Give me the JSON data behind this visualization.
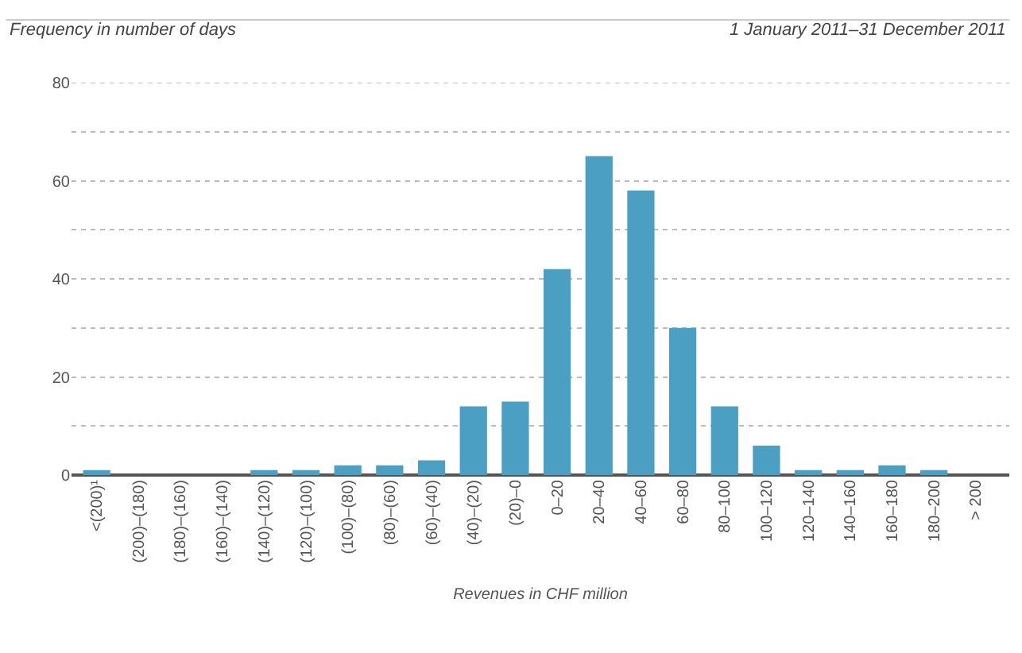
{
  "chart_data": {
    "type": "bar",
    "ylabel": "Frequency in number of days",
    "subtitle": "1 January 2011–31 December 2011",
    "xlabel": "Revenues in CHF million",
    "categories": [
      "<(200)¹",
      "(200)–(180)",
      "(180)–(160)",
      "(160)–(140)",
      "(140)–(120)",
      "(120)–(100)",
      "(100)–(80)",
      "(80)–(60)",
      "(60)–(40)",
      "(40)–(20)",
      "(20)–0",
      "0–20",
      "20–40",
      "40–60",
      "60–80",
      "80–100",
      "100–120",
      "120–140",
      "140–160",
      "160–180",
      "180–200",
      "> 200"
    ],
    "values": [
      1,
      0,
      0,
      0,
      1,
      1,
      2,
      2,
      3,
      14,
      15,
      42,
      65,
      58,
      30,
      14,
      6,
      1,
      1,
      2,
      1,
      0
    ],
    "color": "#4a9fc3",
    "ylim": [
      0,
      80
    ],
    "yticks": [
      0,
      {
        "value": 10,
        "label": null
      },
      20,
      {
        "value": 30,
        "label": null
      },
      40,
      {
        "value": 50,
        "label": null
      },
      60,
      {
        "value": 70,
        "label": null
      },
      80
    ],
    "grid": "y"
  }
}
